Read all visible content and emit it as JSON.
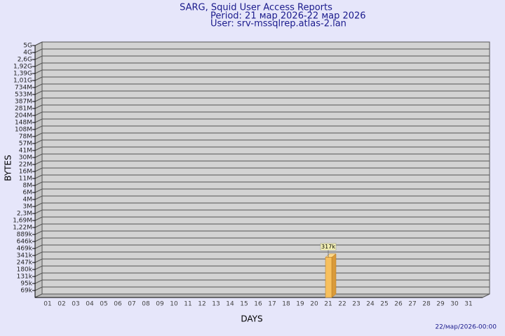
{
  "chart_data": {
    "type": "bar",
    "title": "SARG, Squid User Access Reports",
    "subtitle": "Period: 21 мар 2026-22 мар 2026",
    "user": "User: srv-mssqlrep.atlas-2.lan",
    "x_label": "DAYS",
    "y_label": "BYTES",
    "footer": "22/мар/2026-00:00",
    "categories": [
      "01",
      "02",
      "03",
      "04",
      "05",
      "06",
      "07",
      "08",
      "09",
      "10",
      "11",
      "12",
      "13",
      "14",
      "15",
      "16",
      "17",
      "18",
      "19",
      "20",
      "21",
      "22",
      "23",
      "24",
      "25",
      "26",
      "27",
      "28",
      "29",
      "30",
      "31"
    ],
    "values": [
      null,
      null,
      null,
      null,
      null,
      null,
      null,
      null,
      null,
      null,
      null,
      null,
      null,
      null,
      null,
      null,
      null,
      null,
      null,
      null,
      317000,
      null,
      null,
      null,
      null,
      null,
      null,
      null,
      null,
      null,
      null
    ],
    "value_labels": [
      null,
      null,
      null,
      null,
      null,
      null,
      null,
      null,
      null,
      null,
      null,
      null,
      null,
      null,
      null,
      null,
      null,
      null,
      null,
      null,
      "317k",
      null,
      null,
      null,
      null,
      null,
      null,
      null,
      null,
      null,
      null
    ],
    "color": "#f7c05e",
    "ylim": [
      0,
      5000000000
    ],
    "yticks": [
      {
        "value": 69000,
        "label": "69k"
      },
      {
        "value": 95000,
        "label": "95k"
      },
      {
        "value": 131000,
        "label": "131k"
      },
      {
        "value": 180000,
        "label": "180k"
      },
      {
        "value": 247000,
        "label": "247k"
      },
      {
        "value": 341000,
        "label": "341k"
      },
      {
        "value": 469000,
        "label": "469k"
      },
      {
        "value": 646000,
        "label": "646k"
      },
      {
        "value": 889000,
        "label": "889k"
      },
      {
        "value": 1220000,
        "label": "1,22M"
      },
      {
        "value": 1690000,
        "label": "1,69M"
      },
      {
        "value": 2300000,
        "label": "2,3M"
      },
      {
        "value": 3000000,
        "label": "3M"
      },
      {
        "value": 4000000,
        "label": "4M"
      },
      {
        "value": 6000000,
        "label": "6M"
      },
      {
        "value": 8000000,
        "label": "8M"
      },
      {
        "value": 11000000,
        "label": "11M"
      },
      {
        "value": 16000000,
        "label": "16M"
      },
      {
        "value": 22000000,
        "label": "22M"
      },
      {
        "value": 30000000,
        "label": "30M"
      },
      {
        "value": 41000000,
        "label": "41M"
      },
      {
        "value": 57000000,
        "label": "57M"
      },
      {
        "value": 78000000,
        "label": "78M"
      },
      {
        "value": 108000000,
        "label": "108M"
      },
      {
        "value": 148000000,
        "label": "148M"
      },
      {
        "value": 204000000,
        "label": "204M"
      },
      {
        "value": 281000000,
        "label": "281M"
      },
      {
        "value": 387000000,
        "label": "387M"
      },
      {
        "value": 533000000,
        "label": "533M"
      },
      {
        "value": 734000000,
        "label": "734M"
      },
      {
        "value": 1010000000,
        "label": "1,01G"
      },
      {
        "value": 1390000000,
        "label": "1,39G"
      },
      {
        "value": 1920000000,
        "label": "1,92G"
      },
      {
        "value": 2600000000,
        "label": "2,6G"
      },
      {
        "value": 4000000000,
        "label": "4G"
      },
      {
        "value": 5000000000,
        "label": "5G"
      }
    ],
    "grid": true
  }
}
